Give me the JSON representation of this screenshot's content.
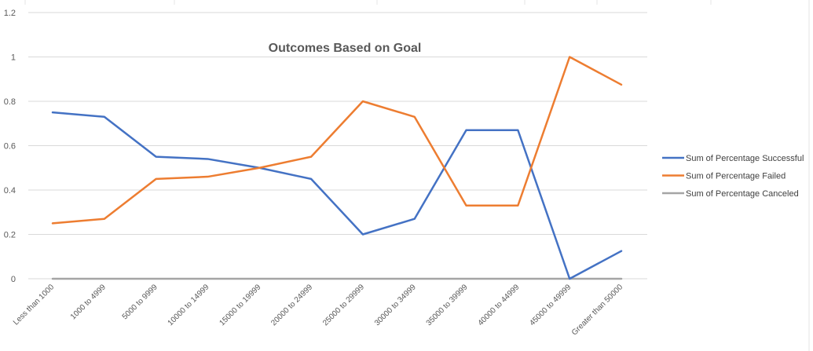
{
  "chart_data": {
    "type": "line",
    "title": "Outcomes Based on Goal",
    "xlabel": "",
    "ylabel": "",
    "categories": [
      "Less than 1000",
      "1000 to 4999",
      "5000 to 9999",
      "10000 to 14999",
      "15000 to 19999",
      "20000 to 24999",
      "25000 to 29999",
      "30000 to 34999",
      "35000 to 39999",
      "40000 to 44999",
      "45000 to 49999",
      "Greater than 50000"
    ],
    "yticks": [
      "0",
      "0.2",
      "0.4",
      "0.6",
      "0.8",
      "1",
      "1.2"
    ],
    "ylim": [
      0,
      1.2
    ],
    "grid": true,
    "legend_position": "right",
    "series": [
      {
        "name": "Sum of Percentage Successful",
        "color": "#4472c4",
        "values": [
          0.75,
          0.73,
          0.55,
          0.54,
          0.5,
          0.45,
          0.2,
          0.27,
          0.67,
          0.67,
          0.0,
          0.125
        ]
      },
      {
        "name": "Sum of Percentage Failed",
        "color": "#ed7d31",
        "values": [
          0.25,
          0.27,
          0.45,
          0.46,
          0.5,
          0.55,
          0.8,
          0.73,
          0.33,
          0.33,
          1.0,
          0.875
        ]
      },
      {
        "name": "Sum of Percentage Canceled",
        "color": "#a5a5a5",
        "values": [
          0,
          0,
          0,
          0,
          0,
          0,
          0,
          0,
          0,
          0,
          0,
          0
        ]
      }
    ]
  }
}
